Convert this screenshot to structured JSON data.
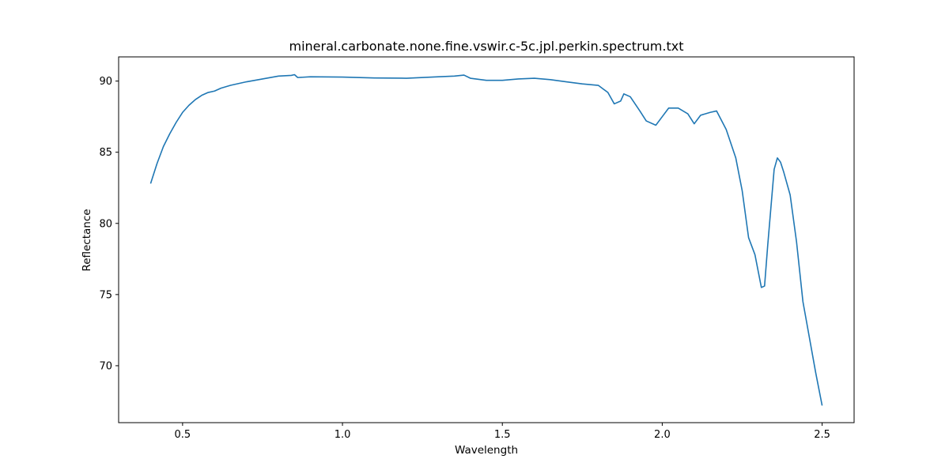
{
  "chart_data": {
    "type": "line",
    "title": "mineral.carbonate.none.fine.vswir.c-5c.jpl.perkin.spectrum.txt",
    "xlabel": "Wavelength",
    "ylabel": "Reflectance",
    "xlim": [
      0.3,
      2.6
    ],
    "ylim": [
      66.0,
      91.7
    ],
    "xticks": [
      0.5,
      1.0,
      1.5,
      2.0,
      2.5
    ],
    "xtick_labels": [
      "0.5",
      "1.0",
      "1.5",
      "2.0",
      "2.5"
    ],
    "yticks": [
      70,
      75,
      80,
      85,
      90
    ],
    "ytick_labels": [
      "70",
      "75",
      "80",
      "85",
      "90"
    ],
    "grid": false,
    "series": [
      {
        "color": "#1f77b4",
        "x": [
          0.4,
          0.42,
          0.44,
          0.46,
          0.48,
          0.5,
          0.52,
          0.54,
          0.56,
          0.58,
          0.6,
          0.62,
          0.65,
          0.7,
          0.75,
          0.8,
          0.84,
          0.85,
          0.86,
          0.9,
          1.0,
          1.1,
          1.2,
          1.3,
          1.35,
          1.38,
          1.4,
          1.45,
          1.5,
          1.55,
          1.6,
          1.65,
          1.7,
          1.75,
          1.8,
          1.83,
          1.85,
          1.87,
          1.88,
          1.9,
          1.93,
          1.95,
          1.98,
          2.0,
          2.02,
          2.05,
          2.08,
          2.1,
          2.12,
          2.15,
          2.17,
          2.2,
          2.23,
          2.25,
          2.27,
          2.29,
          2.31,
          2.32,
          2.33,
          2.35,
          2.36,
          2.37,
          2.38,
          2.4,
          2.42,
          2.44,
          2.46,
          2.48,
          2.5
        ],
        "y": [
          82.8,
          84.2,
          85.4,
          86.3,
          87.1,
          87.8,
          88.3,
          88.7,
          89.0,
          89.2,
          89.3,
          89.5,
          89.7,
          89.95,
          90.15,
          90.35,
          90.4,
          90.45,
          90.25,
          90.3,
          90.28,
          90.22,
          90.2,
          90.3,
          90.35,
          90.42,
          90.2,
          90.05,
          90.05,
          90.15,
          90.2,
          90.1,
          89.95,
          89.8,
          89.7,
          89.2,
          88.4,
          88.6,
          89.1,
          88.9,
          87.9,
          87.2,
          86.9,
          87.5,
          88.1,
          88.1,
          87.7,
          87.0,
          87.6,
          87.8,
          87.9,
          86.6,
          84.6,
          82.3,
          79.0,
          77.8,
          75.5,
          75.6,
          78.5,
          83.8,
          84.6,
          84.3,
          83.6,
          82.0,
          78.7,
          74.5,
          72.0,
          69.5,
          67.2
        ]
      }
    ]
  }
}
